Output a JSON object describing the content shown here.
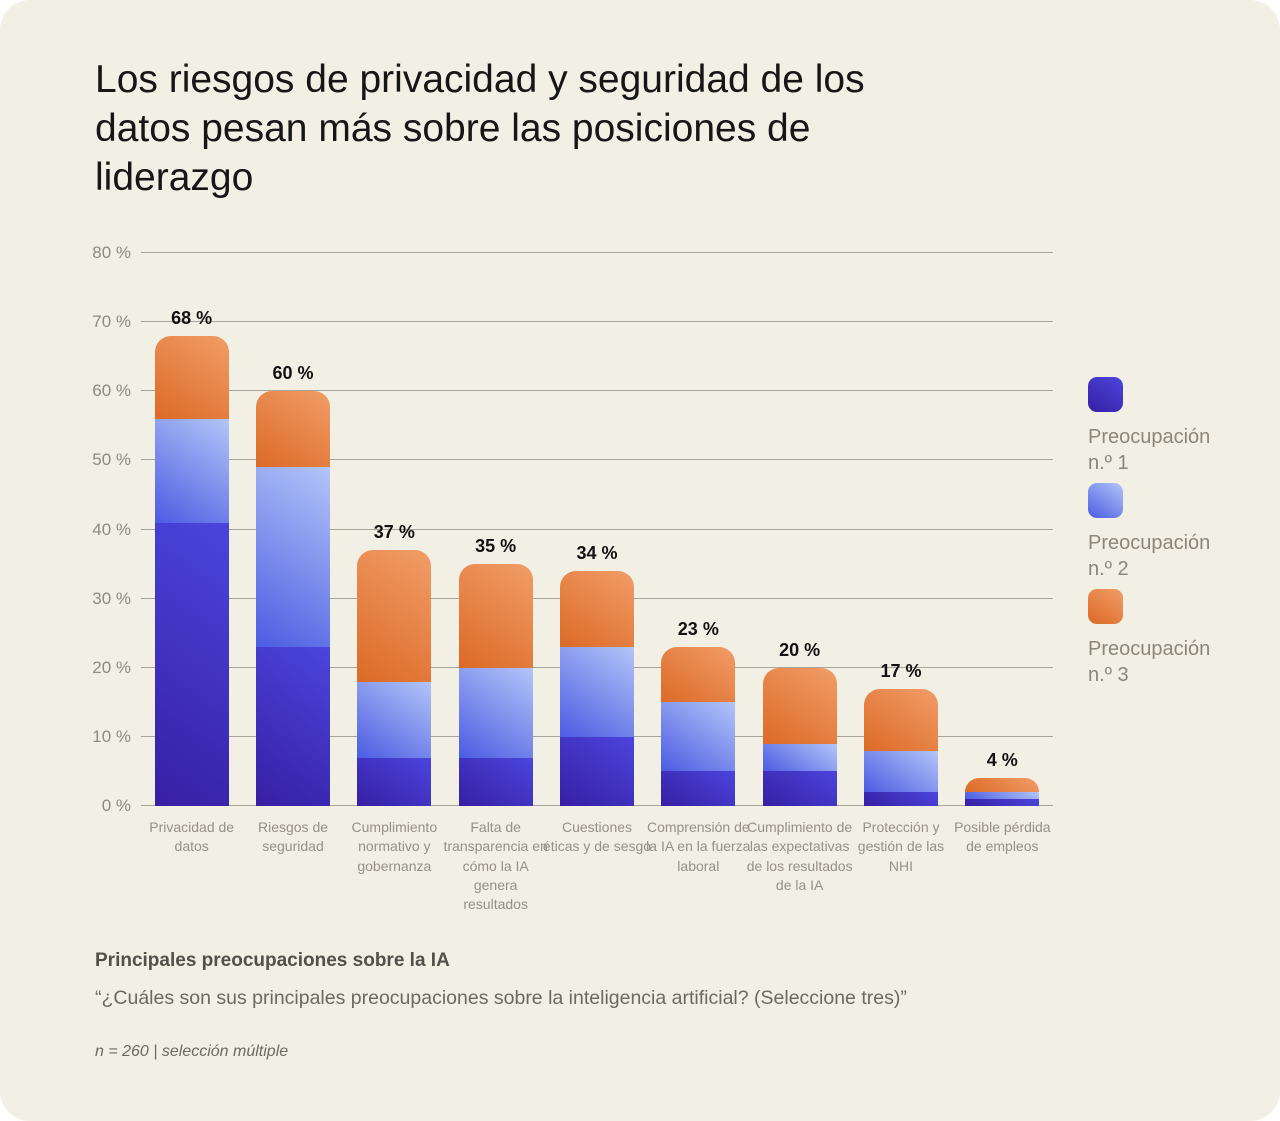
{
  "title": "Los riesgos de privacidad y seguridad de los datos pesan más sobre las posiciones de liderazgo",
  "chart_data": {
    "type": "bar",
    "stacked": true,
    "grid": true,
    "legend_position": "right",
    "ylim": [
      0,
      80
    ],
    "yticks": [
      0,
      10,
      20,
      30,
      40,
      50,
      60,
      70,
      80
    ],
    "ytick_labels": [
      "0 %",
      "10 %",
      "20 %",
      "30 %",
      "40 %",
      "50 %",
      "60 %",
      "70 %",
      "80 %"
    ],
    "categories": [
      "Privacidad de datos",
      "Riesgos de seguridad",
      "Cumplimiento normativo y gobernanza",
      "Falta de transparencia en cómo la IA genera resultados",
      "Cuestiones éticas y de sesgo",
      "Comprensión de la IA en la fuerza laboral",
      "Cumplimiento de las expectativas de los resultados de la IA",
      "Protección y gestión de las NHI",
      "Posible pérdida de empleos"
    ],
    "series": [
      {
        "name": "Preocupación n.º 1",
        "values": [
          41,
          23,
          7,
          7,
          10,
          5,
          5,
          2,
          1
        ]
      },
      {
        "name": "Preocupación n.º 2",
        "values": [
          15,
          26,
          11,
          13,
          13,
          10,
          4,
          6,
          1
        ]
      },
      {
        "name": "Preocupación n.º 3",
        "values": [
          12,
          11,
          19,
          15,
          11,
          8,
          11,
          9,
          2
        ]
      }
    ],
    "totals": [
      68,
      60,
      37,
      35,
      34,
      23,
      20,
      17,
      4
    ],
    "total_labels": [
      "68 %",
      "60 %",
      "37 %",
      "35 %",
      "34 %",
      "23 %",
      "20 %",
      "17 %",
      "4 %"
    ]
  },
  "footer": {
    "heading": "Principales preocupaciones sobre la IA",
    "question": "“¿Cuáles son sus principales preocupaciones sobre la inteligencia artificial? (Seleccione tres)”",
    "note": "n = 260 | selección múltiple"
  },
  "colors": {
    "page_bg": "#ffffff",
    "card_bg": "#f2efe4",
    "grid": "#a7a49c",
    "axis_text": "#8c8a84",
    "category_text": "#95908a",
    "value_text": "#111111",
    "title_text": "#161616",
    "legend_text": "#8b8678",
    "footer_heading_text": "#52504a",
    "footer_text": "#6d695f",
    "series_gradients": [
      [
        "#4b45dd",
        "#371fa3"
      ],
      [
        "#b3c5f8",
        "#4c5ce2"
      ],
      [
        "#f19d68",
        "#dc6a26"
      ]
    ]
  }
}
